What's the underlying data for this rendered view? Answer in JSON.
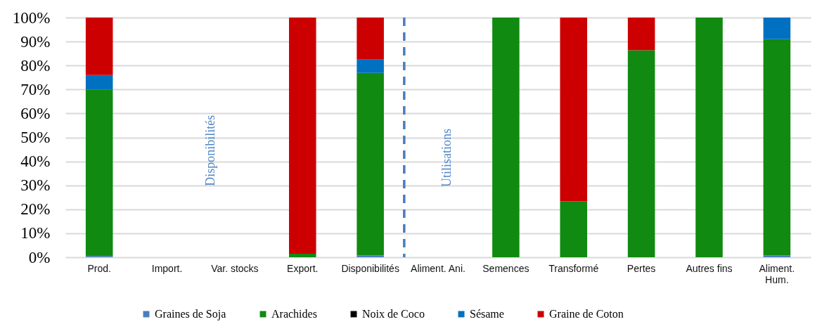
{
  "chart_data": {
    "type": "bar",
    "stacked": true,
    "categories": [
      "Prod.",
      "Import.",
      "Var. stocks",
      "Export.",
      "Disponibilités",
      "Aliment. Ani.",
      "Semences",
      "Transformé",
      "Pertes",
      "Autres fins",
      "Aliment. Hum."
    ],
    "series": [
      {
        "name": "Graines de Soja",
        "color": "#4a7ebb",
        "values": [
          0.5,
          null,
          null,
          null,
          0.7,
          null,
          null,
          null,
          null,
          null,
          0.8
        ]
      },
      {
        "name": "Arachides",
        "color": "#108a10",
        "values": [
          69.5,
          null,
          null,
          1.5,
          76.2,
          null,
          100,
          23.3,
          86.4,
          100,
          90.2
        ]
      },
      {
        "name": "Noix de Coco",
        "color": "#000000",
        "values": [
          null,
          null,
          null,
          null,
          null,
          null,
          null,
          null,
          null,
          null,
          null
        ]
      },
      {
        "name": "Sésame",
        "color": "#0070c0",
        "values": [
          6,
          null,
          null,
          null,
          5.6,
          null,
          null,
          null,
          null,
          null,
          9
        ]
      },
      {
        "name": "Graine de Coton",
        "color": "#cc0000",
        "values": [
          24,
          null,
          null,
          98.5,
          17.5,
          null,
          null,
          76.7,
          13.6,
          null,
          null
        ]
      }
    ],
    "ylim": [
      0,
      100
    ],
    "yticks": [
      {
        "value": 0,
        "label": "0%"
      },
      {
        "value": 10,
        "label": "10%"
      },
      {
        "value": 20,
        "label": "20%"
      },
      {
        "value": 30,
        "label": "30%"
      },
      {
        "value": 40,
        "label": "40%"
      },
      {
        "value": 50,
        "label": "50%"
      },
      {
        "value": 60,
        "label": "60%"
      },
      {
        "value": 70,
        "label": "70%"
      },
      {
        "value": 80,
        "label": "80%"
      },
      {
        "value": 90,
        "label": "90%"
      },
      {
        "value": 100,
        "label": "100%"
      }
    ],
    "grid": "y",
    "legend": "bottom",
    "ref_lines": [
      {
        "axis": "x",
        "value": "Aliment. Ani.",
        "line_style": "dashed",
        "color": "#4a7ebb"
      }
    ],
    "annotations": [
      "Disponibilités",
      "Utilisations"
    ]
  }
}
